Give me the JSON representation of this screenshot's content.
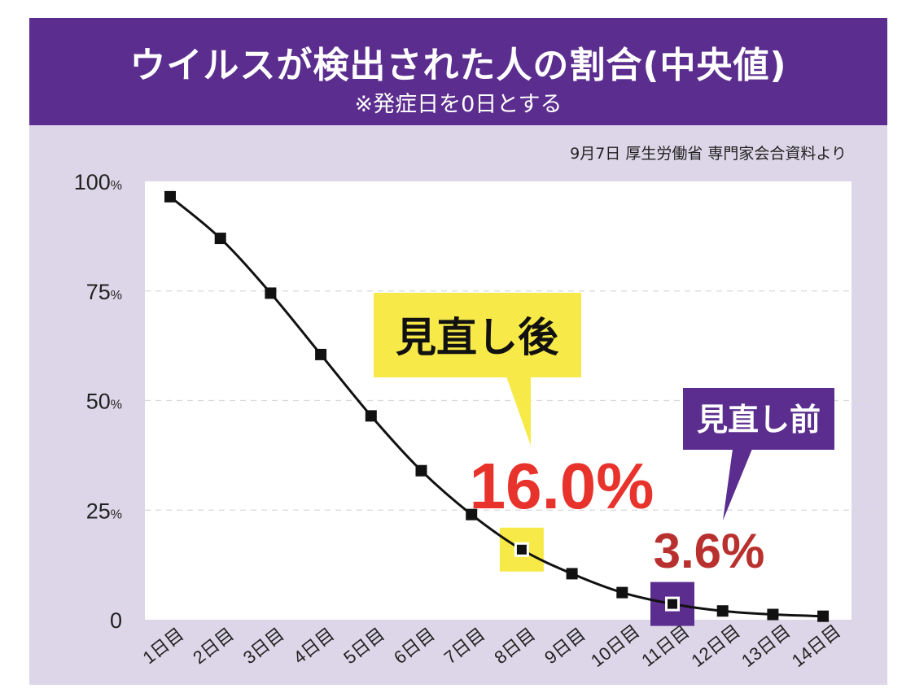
{
  "header": {
    "title": "ウイルスが検出された人の割合(中央値)",
    "subtitle": "※発症日を0日とする"
  },
  "source": "9月7日 厚生労働省 専門家会合資料より",
  "colors": {
    "header_bg": "#5b2d8e",
    "panel_bg": "#ddd6e8",
    "plot_bg": "#ffffff",
    "after_label_bg": "#f7ea48",
    "before_label_bg": "#5b2d8e",
    "value_red": "#e8322c",
    "value_dark_red": "#b8312f"
  },
  "chart_data": {
    "type": "line",
    "title": "ウイルスが検出された人の割合(中央値)",
    "subtitle": "※発症日を0日とする",
    "categories": [
      "1日目",
      "2日目",
      "3日目",
      "4日目",
      "5日目",
      "6日目",
      "7日目",
      "8日目",
      "9日目",
      "10日目",
      "11日目",
      "12日目",
      "13日目",
      "14日目"
    ],
    "values": [
      96.5,
      87.0,
      74.5,
      60.5,
      46.5,
      34.0,
      24.0,
      16.0,
      10.5,
      6.2,
      3.6,
      2.0,
      1.2,
      0.8
    ],
    "ylim": [
      0,
      100
    ],
    "yticks": [
      {
        "value": 100,
        "label": "100",
        "unit": "%"
      },
      {
        "value": 75,
        "label": "75",
        "unit": "%"
      },
      {
        "value": 50,
        "label": "50",
        "unit": "%"
      },
      {
        "value": 25,
        "label": "25",
        "unit": "%"
      },
      {
        "value": 0,
        "label": "0",
        "unit": ""
      }
    ],
    "annotations": [
      {
        "name": "after",
        "label": "見直し後",
        "value_text": "16.0%",
        "category_index": 7
      },
      {
        "name": "before",
        "label": "見直し前",
        "value_text": "3.6%",
        "category_index": 10
      }
    ]
  }
}
